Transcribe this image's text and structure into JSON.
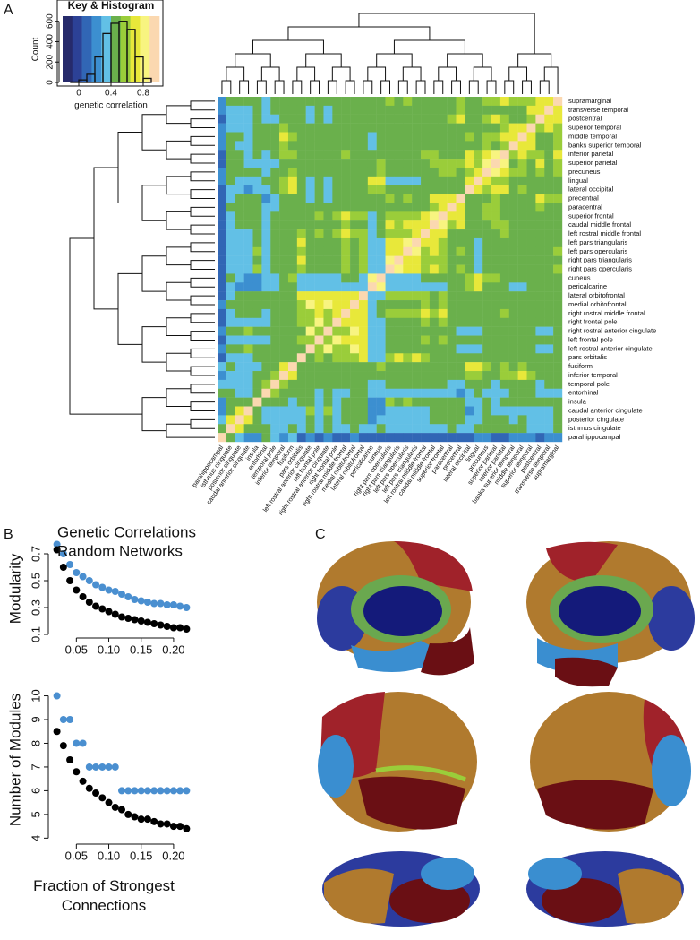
{
  "panel_labels": [
    "A",
    "B",
    "C"
  ],
  "chart_data": [
    {
      "type": "histogram",
      "title": "Key & Histogram",
      "xlabel": "genetic correlation",
      "ylabel": "Count",
      "bins": [
        -0.2,
        -0.1,
        0,
        0.1,
        0.2,
        0.3,
        0.4,
        0.5,
        0.6,
        0.7,
        0.8,
        0.9,
        1.0
      ],
      "values": [
        0,
        5,
        25,
        80,
        250,
        480,
        580,
        600,
        520,
        250,
        40,
        0
      ],
      "color": "#111111",
      "xlim": [
        -0.2,
        1.0
      ],
      "xticks": [
        0,
        0.4,
        0.8
      ],
      "ylim": [
        0,
        650
      ],
      "yticks": [
        0,
        200,
        400,
        600
      ]
    },
    {
      "type": "heatmap",
      "labels": [
        "supramarginal",
        "transverse temporal",
        "postcentral",
        "superior temporal",
        "middle temporal",
        "banks superior temporal",
        "inferior parietal",
        "superior parietal",
        "precuneus",
        "lingual",
        "lateral occipital",
        "precentral",
        "paracentral",
        "superior frontal",
        "caudal middle frontal",
        "left rostral middle frontal",
        "left pars  triangularis",
        "left pars opercularis",
        "right pars triangularis",
        "right pars opercularis",
        "cuneus",
        "pericalcarine",
        "lateral orbitofrontal",
        "medial orbitofrontal",
        "right rostral middle frontal",
        "right frontal pole",
        "right rostral anterior cingulate",
        "left frontal pole",
        "left rostral anterior cingulate",
        "pars orbitalis",
        "fusiform",
        "inferior temporal",
        "temporal pole",
        "entorhinal",
        "insula",
        "caudal anterior cingulate",
        "posterior cingulate",
        "isthmus cingulate",
        "parahippocampal"
      ],
      "colors": [
        "#262a6b",
        "#2c4196",
        "#3166b5",
        "#3c8fd0",
        "#62c0e6",
        "#6ab04c",
        "#9acd3a",
        "#e8e83a",
        "#f8f480",
        "#fbd8b0"
      ],
      "clim": [
        -0.2,
        1.0
      ],
      "values": [
        [
          1
        ],
        [
          0.7,
          1
        ],
        [
          0.7,
          0.7,
          1
        ],
        [
          0.6,
          0.7,
          0.6,
          1
        ],
        [
          0.6,
          0.5,
          0.5,
          0.7,
          1
        ],
        [
          0.6,
          0.5,
          0.5,
          0.7,
          0.7,
          1
        ],
        [
          0.7,
          0.5,
          0.6,
          0.6,
          0.7,
          0.6,
          1
        ],
        [
          0.6,
          0.5,
          0.7,
          0.5,
          0.6,
          0.5,
          0.8,
          1
        ],
        [
          0.6,
          0.5,
          0.6,
          0.5,
          0.6,
          0.6,
          0.7,
          0.8,
          1
        ],
        [
          0.5,
          0.5,
          0.5,
          0.5,
          0.5,
          0.4,
          0.6,
          0.6,
          0.7,
          1
        ],
        [
          0.5,
          0.4,
          0.5,
          0.5,
          0.6,
          0.5,
          0.7,
          0.7,
          0.6,
          0.7,
          1
        ],
        [
          0.6,
          0.6,
          0.7,
          0.5,
          0.5,
          0.5,
          0.5,
          0.6,
          0.5,
          0.4,
          0.5,
          1
        ],
        [
          0.5,
          0.5,
          0.6,
          0.4,
          0.4,
          0.4,
          0.5,
          0.6,
          0.6,
          0.5,
          0.4,
          0.7,
          1
        ],
        [
          0.5,
          0.4,
          0.5,
          0.4,
          0.5,
          0.4,
          0.5,
          0.6,
          0.6,
          0.4,
          0.4,
          0.7,
          0.7,
          1
        ],
        [
          0.5,
          0.4,
          0.5,
          0.4,
          0.5,
          0.5,
          0.6,
          0.6,
          0.5,
          0.4,
          0.5,
          0.7,
          0.6,
          0.8,
          1
        ],
        [
          0.5,
          0.4,
          0.4,
          0.4,
          0.5,
          0.5,
          0.6,
          0.5,
          0.5,
          0.4,
          0.5,
          0.5,
          0.5,
          0.7,
          0.7,
          1
        ],
        [
          0.5,
          0.4,
          0.4,
          0.5,
          0.5,
          0.5,
          0.5,
          0.4,
          0.4,
          0.3,
          0.4,
          0.5,
          0.4,
          0.6,
          0.7,
          0.7,
          1
        ],
        [
          0.6,
          0.5,
          0.5,
          0.5,
          0.5,
          0.5,
          0.5,
          0.4,
          0.4,
          0.3,
          0.4,
          0.6,
          0.4,
          0.6,
          0.7,
          0.6,
          0.8,
          1
        ],
        [
          0.5,
          0.4,
          0.4,
          0.5,
          0.5,
          0.5,
          0.5,
          0.4,
          0.4,
          0.3,
          0.4,
          0.5,
          0.4,
          0.6,
          0.6,
          0.6,
          0.7,
          0.7,
          1
        ],
        [
          0.6,
          0.5,
          0.5,
          0.5,
          0.5,
          0.4,
          0.5,
          0.4,
          0.4,
          0.3,
          0.4,
          0.6,
          0.4,
          0.6,
          0.7,
          0.6,
          0.7,
          0.7,
          0.8,
          1
        ],
        [
          0.4,
          0.4,
          0.4,
          0.4,
          0.4,
          0.4,
          0.5,
          0.6,
          0.6,
          0.7,
          0.6,
          0.4,
          0.5,
          0.4,
          0.4,
          0.4,
          0.3,
          0.3,
          0.3,
          0.3,
          1
        ],
        [
          0.4,
          0.4,
          0.4,
          0.4,
          0.3,
          0.3,
          0.4,
          0.5,
          0.5,
          0.7,
          0.6,
          0.4,
          0.4,
          0.3,
          0.3,
          0.3,
          0.3,
          0.3,
          0.3,
          0.3,
          0.8,
          1
        ],
        [
          0.5,
          0.4,
          0.4,
          0.5,
          0.5,
          0.5,
          0.5,
          0.4,
          0.5,
          0.4,
          0.4,
          0.4,
          0.4,
          0.6,
          0.5,
          0.6,
          0.6,
          0.6,
          0.6,
          0.6,
          0.3,
          0.3,
          1
        ],
        [
          0.5,
          0.4,
          0.4,
          0.5,
          0.5,
          0.5,
          0.5,
          0.5,
          0.5,
          0.4,
          0.4,
          0.4,
          0.5,
          0.6,
          0.5,
          0.6,
          0.5,
          0.5,
          0.5,
          0.5,
          0.4,
          0.3,
          0.7,
          1
        ],
        [
          0.5,
          0.4,
          0.4,
          0.5,
          0.5,
          0.5,
          0.6,
          0.5,
          0.5,
          0.4,
          0.5,
          0.5,
          0.5,
          0.7,
          0.6,
          0.7,
          0.6,
          0.6,
          0.6,
          0.6,
          0.4,
          0.3,
          0.7,
          0.7,
          1
        ],
        [
          0.4,
          0.4,
          0.4,
          0.4,
          0.5,
          0.4,
          0.5,
          0.4,
          0.5,
          0.4,
          0.4,
          0.4,
          0.4,
          0.6,
          0.5,
          0.6,
          0.5,
          0.5,
          0.5,
          0.5,
          0.3,
          0.3,
          0.7,
          0.7,
          0.7,
          1
        ],
        [
          0.4,
          0.3,
          0.3,
          0.4,
          0.4,
          0.4,
          0.4,
          0.4,
          0.4,
          0.3,
          0.3,
          0.3,
          0.4,
          0.5,
          0.4,
          0.5,
          0.5,
          0.4,
          0.5,
          0.4,
          0.3,
          0.3,
          0.7,
          0.8,
          0.6,
          0.6,
          1
        ],
        [
          0.4,
          0.4,
          0.4,
          0.4,
          0.5,
          0.4,
          0.5,
          0.4,
          0.5,
          0.4,
          0.4,
          0.4,
          0.4,
          0.6,
          0.5,
          0.6,
          0.5,
          0.5,
          0.5,
          0.5,
          0.3,
          0.3,
          0.7,
          0.7,
          0.7,
          0.8,
          0.6,
          1
        ],
        [
          0.4,
          0.3,
          0.3,
          0.4,
          0.4,
          0.4,
          0.4,
          0.4,
          0.4,
          0.3,
          0.3,
          0.3,
          0.4,
          0.5,
          0.4,
          0.5,
          0.5,
          0.4,
          0.5,
          0.4,
          0.3,
          0.3,
          0.7,
          0.8,
          0.6,
          0.6,
          0.8,
          0.6,
          1
        ],
        [
          0.5,
          0.4,
          0.4,
          0.5,
          0.5,
          0.5,
          0.5,
          0.4,
          0.4,
          0.4,
          0.4,
          0.4,
          0.4,
          0.5,
          0.5,
          0.6,
          0.7,
          0.6,
          0.7,
          0.6,
          0.3,
          0.3,
          0.7,
          0.6,
          0.6,
          0.6,
          0.5,
          0.6,
          0.5,
          1
        ],
        [
          0.5,
          0.4,
          0.4,
          0.5,
          0.6,
          0.5,
          0.6,
          0.5,
          0.6,
          0.7,
          0.7,
          0.4,
          0.4,
          0.4,
          0.4,
          0.4,
          0.4,
          0.4,
          0.4,
          0.4,
          0.6,
          0.5,
          0.5,
          0.5,
          0.5,
          0.4,
          0.4,
          0.4,
          0.4,
          0.5,
          1
        ],
        [
          0.5,
          0.4,
          0.4,
          0.6,
          0.7,
          0.6,
          0.6,
          0.5,
          0.5,
          0.6,
          0.6,
          0.4,
          0.4,
          0.4,
          0.5,
          0.5,
          0.5,
          0.4,
          0.5,
          0.4,
          0.4,
          0.4,
          0.5,
          0.5,
          0.5,
          0.5,
          0.4,
          0.5,
          0.4,
          0.5,
          0.7,
          1
        ],
        [
          0.4,
          0.4,
          0.3,
          0.5,
          0.5,
          0.5,
          0.4,
          0.3,
          0.4,
          0.4,
          0.4,
          0.3,
          0.3,
          0.4,
          0.4,
          0.4,
          0.4,
          0.4,
          0.4,
          0.4,
          0.3,
          0.3,
          0.5,
          0.5,
          0.4,
          0.4,
          0.4,
          0.4,
          0.4,
          0.5,
          0.5,
          0.6,
          1
        ],
        [
          0.3,
          0.3,
          0.3,
          0.4,
          0.4,
          0.4,
          0.3,
          0.3,
          0.3,
          0.4,
          0.3,
          0.2,
          0.3,
          0.3,
          0.3,
          0.3,
          0.3,
          0.3,
          0.3,
          0.3,
          0.3,
          0.3,
          0.4,
          0.4,
          0.3,
          0.3,
          0.4,
          0.3,
          0.4,
          0.4,
          0.5,
          0.5,
          0.6,
          1
        ],
        [
          0.5,
          0.5,
          0.4,
          0.5,
          0.4,
          0.4,
          0.4,
          0.3,
          0.4,
          0.3,
          0.3,
          0.5,
          0.4,
          0.4,
          0.5,
          0.4,
          0.5,
          0.6,
          0.5,
          0.6,
          0.2,
          0.2,
          0.5,
          0.4,
          0.4,
          0.3,
          0.4,
          0.3,
          0.4,
          0.5,
          0.3,
          0.4,
          0.5,
          0.4,
          1
        ],
        [
          0.4,
          0.3,
          0.3,
          0.3,
          0.3,
          0.3,
          0.3,
          0.3,
          0.4,
          0.3,
          0.2,
          0.4,
          0.4,
          0.4,
          0.4,
          0.3,
          0.3,
          0.3,
          0.3,
          0.3,
          0.2,
          0.2,
          0.4,
          0.5,
          0.4,
          0.3,
          0.6,
          0.3,
          0.6,
          0.3,
          0.3,
          0.3,
          0.3,
          0.3,
          0.5,
          1
        ],
        [
          0.4,
          0.3,
          0.3,
          0.3,
          0.4,
          0.3,
          0.4,
          0.4,
          0.5,
          0.3,
          0.3,
          0.4,
          0.5,
          0.4,
          0.4,
          0.3,
          0.3,
          0.3,
          0.3,
          0.3,
          0.3,
          0.2,
          0.4,
          0.4,
          0.4,
          0.3,
          0.5,
          0.3,
          0.5,
          0.3,
          0.3,
          0.3,
          0.3,
          0.3,
          0.5,
          0.7,
          1
        ],
        [
          0.4,
          0.3,
          0.3,
          0.3,
          0.4,
          0.4,
          0.4,
          0.4,
          0.5,
          0.4,
          0.3,
          0.3,
          0.4,
          0.3,
          0.3,
          0.3,
          0.3,
          0.3,
          0.3,
          0.3,
          0.4,
          0.3,
          0.3,
          0.4,
          0.3,
          0.3,
          0.4,
          0.3,
          0.4,
          0.3,
          0.4,
          0.3,
          0.3,
          0.4,
          0.4,
          0.5,
          0.7,
          1
        ],
        [
          0.2,
          0.2,
          0.1,
          0.2,
          0.2,
          0.2,
          0.1,
          0.1,
          0.2,
          0.2,
          0.1,
          0.1,
          0.1,
          0.1,
          0.1,
          0.1,
          0.1,
          0.1,
          0.1,
          0.1,
          0.1,
          0.1,
          0.1,
          0.2,
          0.1,
          0.1,
          0.2,
          0.1,
          0.2,
          0.1,
          0.3,
          0.2,
          0.3,
          0.4,
          0.2,
          0.2,
          0.3,
          0.4,
          1
        ]
      ]
    },
    {
      "type": "scatter",
      "ylabel": "Modularity",
      "x": [
        0.02,
        0.03,
        0.04,
        0.05,
        0.06,
        0.07,
        0.08,
        0.09,
        0.1,
        0.11,
        0.12,
        0.13,
        0.14,
        0.15,
        0.16,
        0.17,
        0.18,
        0.19,
        0.2,
        0.21,
        0.22
      ],
      "series": [
        {
          "name": "Genetic Correlations",
          "color": "#4a8fd0",
          "values": [
            0.77,
            0.7,
            0.62,
            0.56,
            0.53,
            0.5,
            0.47,
            0.45,
            0.43,
            0.42,
            0.4,
            0.38,
            0.36,
            0.35,
            0.34,
            0.33,
            0.33,
            0.32,
            0.32,
            0.31,
            0.3
          ]
        },
        {
          "name": "Random Networks",
          "color": "#000000",
          "values": [
            0.73,
            0.6,
            0.5,
            0.43,
            0.38,
            0.34,
            0.31,
            0.29,
            0.27,
            0.25,
            0.23,
            0.22,
            0.21,
            0.2,
            0.19,
            0.18,
            0.17,
            0.16,
            0.15,
            0.15,
            0.14
          ]
        }
      ],
      "xlim": [
        0.015,
        0.225
      ],
      "xticks": [
        0.05,
        {
          "value": 0.1,
          "label": "0.10"
        },
        0.15,
        {
          "value": 0.2,
          "label": "0.20"
        }
      ],
      "ylim": [
        0.1,
        0.78
      ],
      "yticks": [
        0.1,
        0.3,
        0.5,
        0.7
      ]
    },
    {
      "type": "scatter",
      "ylabel": "Number of Modules",
      "xlabel": "Fraction of Strongest Connections",
      "x": [
        0.02,
        0.03,
        0.04,
        0.05,
        0.06,
        0.07,
        0.08,
        0.09,
        0.1,
        0.11,
        0.12,
        0.13,
        0.14,
        0.15,
        0.16,
        0.17,
        0.18,
        0.19,
        0.2,
        0.21,
        0.22
      ],
      "series": [
        {
          "color": "#4a8fd0",
          "values": [
            10,
            9,
            9,
            8,
            8,
            7,
            7,
            7,
            7,
            7,
            6,
            6,
            6,
            6,
            6,
            6,
            6,
            6,
            6,
            6,
            6
          ]
        },
        {
          "color": "#000000",
          "values": [
            8.5,
            7.9,
            7.3,
            6.8,
            6.4,
            6.1,
            5.9,
            5.7,
            5.5,
            5.3,
            5.2,
            5.0,
            4.9,
            4.8,
            4.8,
            4.7,
            4.6,
            4.6,
            4.5,
            4.5,
            4.4
          ]
        }
      ],
      "xlim": [
        0.015,
        0.225
      ],
      "xticks": [
        0.05,
        {
          "value": 0.1,
          "label": "0.10"
        },
        0.15,
        {
          "value": 0.2,
          "label": "0.20"
        }
      ],
      "ylim": [
        3.9,
        10.7
      ],
      "yticks": [
        4,
        5,
        6,
        7,
        8,
        9,
        10
      ]
    }
  ]
}
